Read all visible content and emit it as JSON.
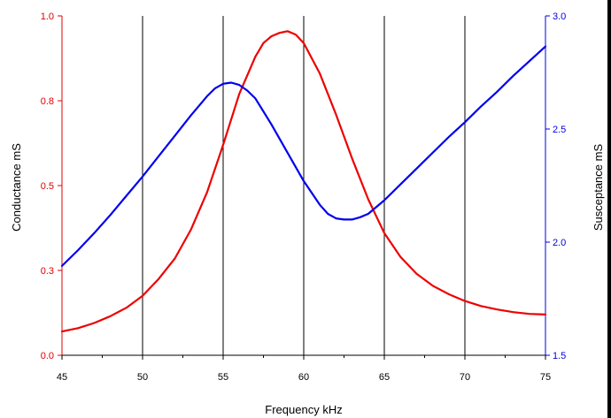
{
  "chart_data": {
    "type": "line",
    "xlabel": "Frequency kHz",
    "ylabel_left": "Conductance mS",
    "ylabel_right": "Susceptance mS",
    "xlim": [
      45,
      75
    ],
    "ylim_left": [
      0.0,
      1.0
    ],
    "ylim_right": [
      1.5,
      3.0
    ],
    "x_ticks": [
      "45",
      "50",
      "55",
      "60",
      "65",
      "70",
      "75"
    ],
    "y_left_ticks": [
      "0.0",
      "0.3",
      "0.5",
      "0.8",
      "1.0"
    ],
    "y_right_ticks": [
      "1.5",
      "2.0",
      "2.5",
      "3.0"
    ],
    "grid": "vertical",
    "colors": {
      "left_axis": "#e00000",
      "right_axis": "#0000e0"
    },
    "series": [
      {
        "axis": "left",
        "color": "#ee0000",
        "x": [
          45,
          46,
          47,
          48,
          49,
          50,
          51,
          52,
          53,
          54,
          55,
          56,
          57,
          57.5,
          58,
          58.5,
          59,
          59.5,
          60,
          61,
          62,
          63,
          64,
          65,
          66,
          67,
          68,
          69,
          70,
          71,
          72,
          73,
          74,
          75
        ],
        "values": [
          0.07,
          0.08,
          0.095,
          0.115,
          0.14,
          0.175,
          0.225,
          0.285,
          0.37,
          0.48,
          0.62,
          0.77,
          0.88,
          0.92,
          0.94,
          0.95,
          0.955,
          0.945,
          0.92,
          0.83,
          0.71,
          0.58,
          0.46,
          0.36,
          0.29,
          0.24,
          0.205,
          0.18,
          0.16,
          0.145,
          0.135,
          0.127,
          0.122,
          0.12
        ]
      },
      {
        "axis": "right",
        "color": "#0000ee",
        "x": [
          45,
          46,
          47,
          48,
          49,
          50,
          51,
          52,
          53,
          54,
          54.5,
          55,
          55.5,
          56,
          56.5,
          57,
          58,
          59,
          60,
          61,
          61.5,
          62,
          62.5,
          63,
          63.5,
          64,
          65,
          66,
          67,
          68,
          69,
          70,
          71,
          72,
          73,
          74,
          75
        ],
        "values": [
          1.895,
          1.965,
          2.04,
          2.12,
          2.205,
          2.29,
          2.38,
          2.47,
          2.56,
          2.645,
          2.68,
          2.7,
          2.705,
          2.695,
          2.67,
          2.635,
          2.52,
          2.395,
          2.27,
          2.165,
          2.125,
          2.105,
          2.1,
          2.1,
          2.11,
          2.125,
          2.185,
          2.255,
          2.325,
          2.395,
          2.465,
          2.53,
          2.6,
          2.665,
          2.735,
          2.8,
          2.865
        ]
      }
    ]
  }
}
